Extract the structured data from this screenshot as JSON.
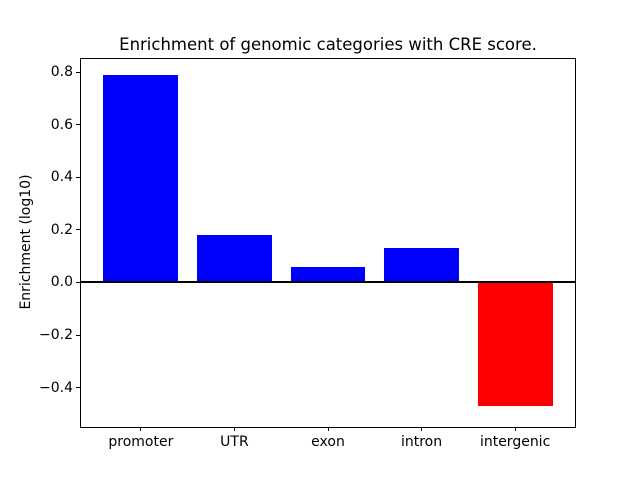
{
  "chart_data": {
    "type": "bar",
    "title": "Enrichment of genomic categories with CRE score.",
    "ylabel": "Enrichment (log10)",
    "xlabel": "",
    "categories": [
      "promoter",
      "UTR",
      "exon",
      "intron",
      "intergenic"
    ],
    "values": [
      0.79,
      0.18,
      0.06,
      0.13,
      -0.47
    ],
    "bar_colors": [
      "#0000ff",
      "#0000ff",
      "#0000ff",
      "#0000ff",
      "#ff0000"
    ],
    "positive_color": "#0000ff",
    "negative_color": "#ff0000",
    "bar_width_units": 0.8,
    "yticks": [
      0.8,
      0.6,
      0.4,
      0.2,
      0.0,
      -0.2,
      -0.4
    ],
    "ytick_labels": [
      "0.8",
      "0.6",
      "0.4",
      "0.2",
      "0.0",
      "−0.2",
      "−0.4"
    ],
    "ylim": [
      -0.55,
      0.85
    ],
    "xlim": [
      -0.64,
      4.64
    ],
    "grid": false,
    "legend": false,
    "zero_line": true,
    "zero_line_color": "#000000",
    "axis_color": "#000000",
    "background_color": "#ffffff"
  }
}
